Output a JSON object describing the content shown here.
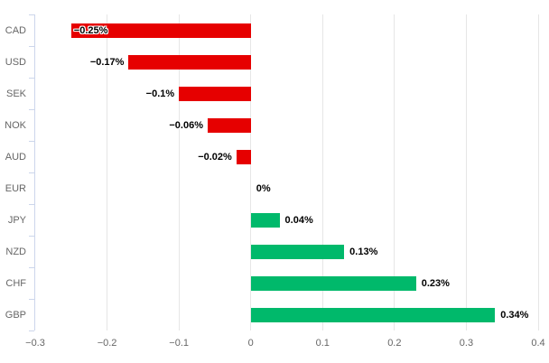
{
  "chart_data": {
    "type": "bar",
    "orientation": "horizontal",
    "title": "",
    "xlabel": "",
    "ylabel": "",
    "categories": [
      "CAD",
      "USD",
      "SEK",
      "NOK",
      "AUD",
      "EUR",
      "JPY",
      "NZD",
      "CHF",
      "GBP"
    ],
    "values": [
      -0.25,
      -0.17,
      -0.1,
      -0.06,
      -0.02,
      0,
      0.04,
      0.13,
      0.23,
      0.34
    ],
    "data_labels": [
      "−0.25%",
      "−0.17%",
      "−0.1%",
      "−0.06%",
      "−0.02%",
      "0%",
      "0.04%",
      "0.13%",
      "0.23%",
      "0.34%"
    ],
    "xlim": [
      -0.3,
      0.4
    ],
    "x_ticks": [
      -0.3,
      -0.2,
      -0.1,
      0,
      0.1,
      0.2,
      0.3,
      0.4
    ],
    "x_tick_labels": [
      "−0.3",
      "−0.2",
      "−0.1",
      "0",
      "0.1",
      "0.2",
      "0.3",
      "0.4"
    ],
    "grid": true,
    "legend": false,
    "colors": {
      "negative_bar": "#e60000",
      "positive_bar": "#00b96b",
      "gridline": "#e6e6e6",
      "axis_line": "#ccd6eb",
      "tick_label": "#666666",
      "data_label": "#000000",
      "background": "#ffffff"
    }
  }
}
